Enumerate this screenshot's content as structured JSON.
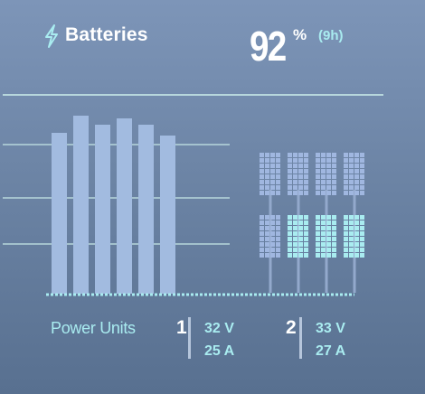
{
  "header": {
    "icon": "lightning-bolt-icon",
    "title": "Batteries",
    "percent_value": "92",
    "percent_unit": "%",
    "time_remaining": "(9h)"
  },
  "colors": {
    "bars": "#a2bbe0",
    "cell_dim": "#a0b7e0",
    "cell_lit": "#a9ecf0",
    "accent_text": "#a9ecf0",
    "gridline": "#b7d7dc"
  },
  "chart_data": {
    "type": "bar",
    "values": [
      178,
      197,
      187,
      194,
      187,
      175
    ],
    "ylim": [
      0,
      220
    ],
    "grid": true
  },
  "battery_columns": [
    {
      "top_lit": false,
      "bottom_lit": false
    },
    {
      "top_lit": false,
      "bottom_lit": true
    },
    {
      "top_lit": false,
      "bottom_lit": true
    },
    {
      "top_lit": false,
      "bottom_lit": true
    }
  ],
  "power_units": {
    "label": "Power Units",
    "units": [
      {
        "number": "1",
        "voltage": "32 V",
        "current": "25 A"
      },
      {
        "number": "2",
        "voltage": "33 V",
        "current": "27 A"
      }
    ]
  }
}
